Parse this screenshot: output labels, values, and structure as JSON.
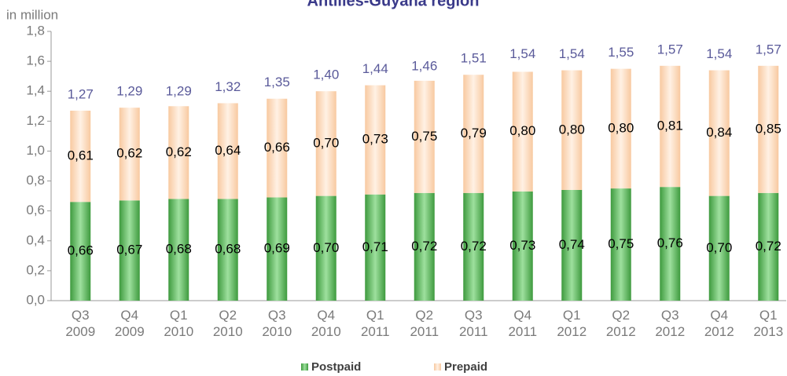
{
  "chart_data": {
    "type": "stacked_bar",
    "title": "Antilles-Guyana region",
    "y_axis_label": "in million",
    "categories": [
      "Q3 2009",
      "Q4 2009",
      "Q1 2010",
      "Q2 2010",
      "Q3 2010",
      "Q4 2010",
      "Q1 2011",
      "Q2 2011",
      "Q3 2011",
      "Q4 2011",
      "Q1 2012",
      "Q2 2012",
      "Q3 2012",
      "Q4 2012",
      "Q1 2013"
    ],
    "series": [
      {
        "name": "Postpaid",
        "color": "#5cb85c",
        "values": [
          0.66,
          0.67,
          0.68,
          0.68,
          0.69,
          0.7,
          0.71,
          0.72,
          0.72,
          0.73,
          0.74,
          0.75,
          0.76,
          0.7,
          0.72
        ],
        "value_labels": [
          "0,66",
          "0,67",
          "0,68",
          "0,68",
          "0,69",
          "0,70",
          "0,71",
          "0,72",
          "0,72",
          "0,73",
          "0,74",
          "0,75",
          "0,76",
          "0,70",
          "0,72"
        ]
      },
      {
        "name": "Prepaid",
        "color": "#fcd9b8",
        "values": [
          0.61,
          0.62,
          0.62,
          0.64,
          0.66,
          0.7,
          0.73,
          0.75,
          0.79,
          0.8,
          0.8,
          0.8,
          0.81,
          0.84,
          0.85
        ],
        "value_labels": [
          "0,61",
          "0,62",
          "0,62",
          "0,64",
          "0,66",
          "0,70",
          "0,73",
          "0,75",
          "0,79",
          "0,80",
          "0,80",
          "0,80",
          "0,81",
          "0,84",
          "0,85"
        ]
      }
    ],
    "totals": [
      1.27,
      1.29,
      1.29,
      1.32,
      1.35,
      1.4,
      1.44,
      1.46,
      1.51,
      1.54,
      1.54,
      1.55,
      1.57,
      1.54,
      1.57
    ],
    "total_labels": [
      "1,27",
      "1,29",
      "1,29",
      "1,32",
      "1,35",
      "1,40",
      "1,44",
      "1,46",
      "1,51",
      "1,54",
      "1,54",
      "1,55",
      "1,57",
      "1,54",
      "1,57"
    ],
    "ylim": [
      0,
      1.8
    ],
    "yticks": [
      {
        "value": 0,
        "label": "0,0"
      },
      {
        "value": 0.2,
        "label": "0,2"
      },
      {
        "value": 0.4,
        "label": "0,4"
      },
      {
        "value": 0.6,
        "label": "0,6"
      },
      {
        "value": 0.8,
        "label": "0,8"
      },
      {
        "value": 1.0,
        "label": "1,0"
      },
      {
        "value": 1.2,
        "label": "1,2"
      },
      {
        "value": 1.4,
        "label": "1,4"
      },
      {
        "value": 1.6,
        "label": "1,6"
      },
      {
        "value": 1.8,
        "label": "1,8"
      }
    ],
    "legend": "bottom"
  }
}
